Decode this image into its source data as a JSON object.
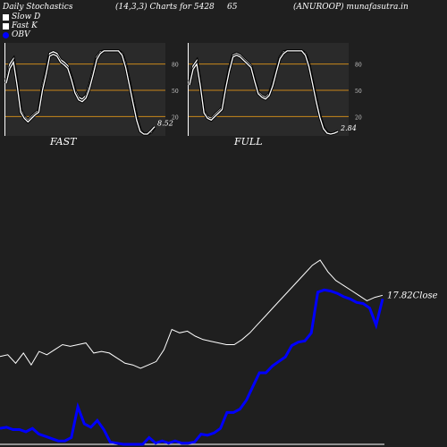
{
  "header": {
    "title": "Daily Stochastics",
    "params": "(14,3,3) Charts for 5428",
    "code": "65",
    "symbol": "(ANUROOP) munafasutra.in"
  },
  "legend": [
    {
      "label": "Slow  D",
      "color": "#ffffff"
    },
    {
      "label": "Fast K",
      "color": "#ffffff"
    },
    {
      "label": "OBV",
      "color": "#0000ff"
    }
  ],
  "chart_data": [
    {
      "type": "line",
      "title": "FAST",
      "ylim": [
        0,
        100
      ],
      "yticks": [
        20,
        50,
        80
      ],
      "last_value_label": "8.52",
      "series": [
        {
          "name": "Slow  D",
          "values": [
            62,
            80,
            86,
            60,
            28,
            20,
            16,
            20,
            24,
            27,
            55,
            72,
            92,
            94,
            92,
            85,
            82,
            78,
            65,
            50,
            42,
            40,
            44,
            56,
            72,
            88,
            94,
            95,
            95,
            95,
            95,
            95,
            92,
            80,
            60,
            40,
            20,
            5,
            0,
            0,
            2,
            8
          ]
        },
        {
          "name": "Fast K",
          "values": [
            58,
            75,
            82,
            56,
            25,
            18,
            14,
            18,
            22,
            25,
            50,
            68,
            89,
            91,
            89,
            82,
            79,
            75,
            62,
            47,
            39,
            37,
            41,
            52,
            68,
            85,
            92,
            95,
            95,
            95,
            95,
            95,
            90,
            76,
            56,
            36,
            16,
            3,
            0,
            0,
            4,
            8.52
          ]
        }
      ]
    },
    {
      "type": "line",
      "title": "FULL",
      "ylim": [
        0,
        100
      ],
      "yticks": [
        20,
        50,
        80
      ],
      "last_value_label": "2.84",
      "series": [
        {
          "name": "Slow  D",
          "values": [
            60,
            78,
            84,
            58,
            26,
            20,
            18,
            22,
            26,
            30,
            55,
            75,
            90,
            92,
            90,
            86,
            82,
            78,
            62,
            48,
            44,
            42,
            46,
            58,
            74,
            88,
            94,
            95,
            95,
            95,
            95,
            95,
            92,
            80,
            60,
            40,
            22,
            8,
            2,
            0,
            1,
            3
          ]
        },
        {
          "name": "Fast K",
          "values": [
            56,
            74,
            80,
            55,
            24,
            18,
            16,
            20,
            24,
            28,
            52,
            72,
            88,
            90,
            88,
            84,
            80,
            76,
            60,
            46,
            42,
            40,
            44,
            55,
            71,
            86,
            92,
            95,
            95,
            95,
            95,
            95,
            90,
            77,
            57,
            37,
            19,
            6,
            1,
            0,
            1,
            2.84
          ]
        }
      ]
    },
    {
      "type": "line",
      "title": "",
      "last_value_label": "17.82Close",
      "series": [
        {
          "name": "Close",
          "color": "#ffffff",
          "values": [
            14.2,
            14.3,
            13.8,
            14.4,
            13.7,
            14.5,
            14.3,
            14.6,
            14.9,
            14.8,
            14.9,
            15.0,
            14.4,
            14.5,
            14.4,
            14.1,
            13.8,
            13.7,
            13.5,
            13.7,
            13.9,
            14.6,
            15.8,
            15.6,
            15.7,
            15.4,
            15.2,
            15.1,
            15.0,
            14.9,
            14.9,
            15.2,
            15.6,
            16.1,
            16.6,
            17.1,
            17.6,
            18.1,
            18.6,
            19.1,
            19.6,
            19.9,
            19.2,
            18.7,
            18.4,
            18.1,
            17.8,
            17.5,
            17.7,
            17.82
          ]
        },
        {
          "name": "OBV",
          "color": "#0000ff",
          "values": [
            14,
            15,
            13,
            13,
            11,
            14,
            9,
            7,
            5,
            3,
            3,
            6,
            33,
            18,
            15,
            21,
            13,
            2,
            1,
            0,
            0,
            0,
            0,
            6,
            1,
            3,
            1,
            3,
            1,
            1,
            2,
            9,
            8,
            10,
            14,
            28,
            28,
            31,
            39,
            51,
            63,
            63,
            69,
            73,
            77,
            87,
            90,
            91,
            98,
            134,
            136,
            135,
            133,
            130,
            128,
            125,
            124,
            120,
            105,
            128
          ]
        }
      ]
    }
  ]
}
